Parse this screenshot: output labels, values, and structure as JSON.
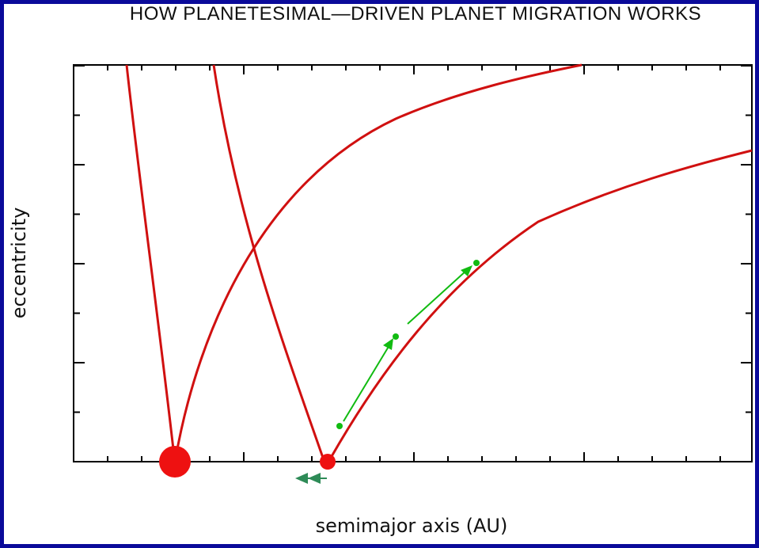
{
  "title": "HOW PLANETESIMAL—DRIVEN PLANET MIGRATION WORKS",
  "xlabel": "semimajor axis (AU)",
  "ylabel": "eccentricity",
  "colors": {
    "frame": "#0a0a9a",
    "curve": "#d01010",
    "planet": "#ee1111",
    "migration_arrow": "#2e8b57",
    "planetesimal": "#11bb11"
  },
  "elements": {
    "planets": [
      "inner-planet (large)",
      "outer-planet (small)"
    ],
    "curves": [
      "inner-planet-left-branch",
      "inner-planet-right-branch",
      "outer-planet-left-branch",
      "outer-planet-right-branch"
    ],
    "migration_marker": "double-left-arrow",
    "planetesimal_path": "three points connected by arrows"
  }
}
